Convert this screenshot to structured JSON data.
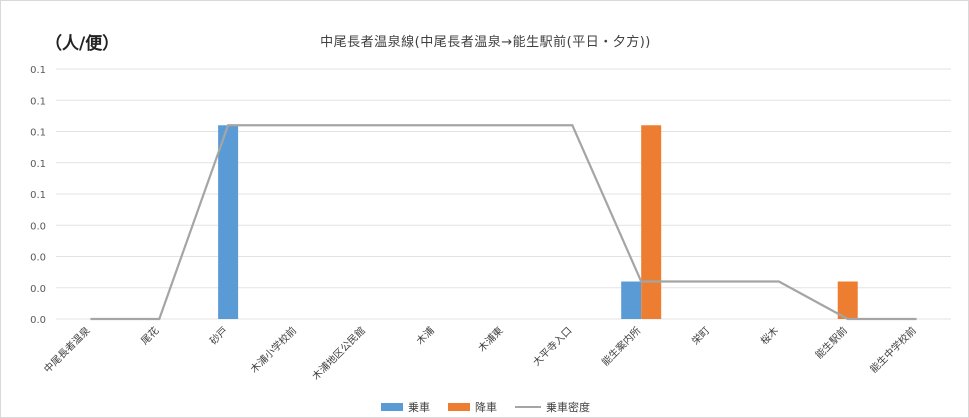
{
  "chart_data": {
    "type": "bar",
    "title": "中尾長者温泉線(中尾長者温泉→能生駅前(平日・夕方))",
    "unit_label": "（人/便）",
    "categories": [
      "中尾長者温泉",
      "尾花",
      "砂戸",
      "木浦小学校前",
      "木浦地区公民館",
      "木浦",
      "木浦東",
      "大平寺入口",
      "能生案内所",
      "栄町",
      "桜木",
      "能生駅前",
      "能生中学校前"
    ],
    "y_tick_labels": [
      "0.0",
      "0.0",
      "0.0",
      "0.0",
      "0.1",
      "0.1",
      "0.1",
      "0.1",
      "0.1"
    ],
    "ylim": [
      0,
      0.08
    ],
    "series": [
      {
        "name": "乗車",
        "kind": "bar",
        "color": "#5b9bd5",
        "values": [
          0,
          0,
          0.062,
          0,
          0,
          0,
          0,
          0,
          0.012,
          0,
          0,
          0,
          0
        ]
      },
      {
        "name": "降車",
        "kind": "bar",
        "color": "#ed7d31",
        "values": [
          0,
          0,
          0,
          0,
          0,
          0,
          0,
          0,
          0.062,
          0,
          0,
          0.012,
          0
        ]
      },
      {
        "name": "乗車密度",
        "kind": "line",
        "color": "#a5a5a5",
        "values": [
          0,
          0,
          0.062,
          0.062,
          0.062,
          0.062,
          0.062,
          0.062,
          0.012,
          0.012,
          0.012,
          0,
          0
        ]
      }
    ],
    "grid": true,
    "legend_position": "bottom"
  }
}
